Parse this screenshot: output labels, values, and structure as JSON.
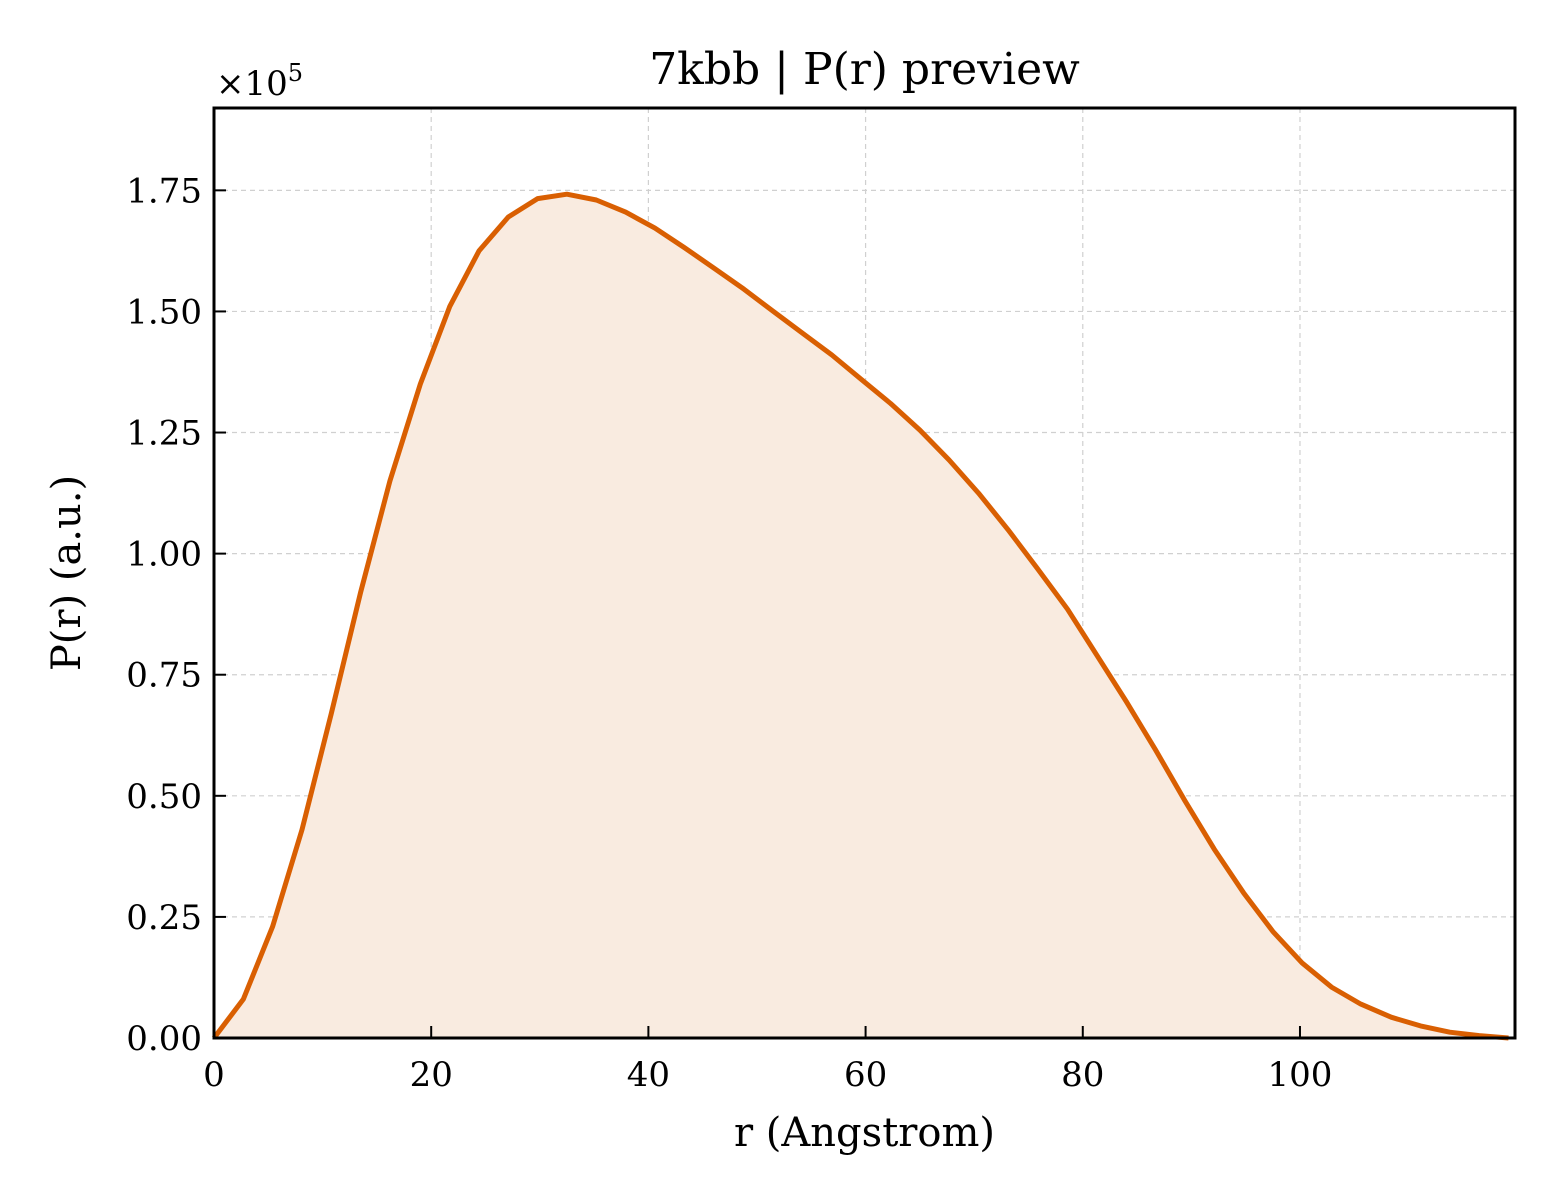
{
  "chart_data": {
    "type": "area",
    "title": "7kbb | P(r) preview",
    "xlabel": "r (Angstrom)",
    "ylabel": "P(r) (a.u.)",
    "y_offset_text": "×10",
    "y_offset_exponent": "5",
    "xlim": [
      0,
      119.8
    ],
    "ylim": [
      0,
      1.92
    ],
    "y_scale_factor": 100000,
    "xticks": [
      0,
      20,
      40,
      60,
      80,
      100
    ],
    "xtick_labels": [
      "0",
      "20",
      "40",
      "60",
      "80",
      "100"
    ],
    "yticks": [
      0,
      0.25,
      0.5,
      0.75,
      1.0,
      1.25,
      1.5,
      1.75
    ],
    "ytick_labels": [
      "0.00",
      "0.25",
      "0.50",
      "0.75",
      "1.00",
      "1.25",
      "1.50",
      "1.75"
    ],
    "grid": true,
    "series": [
      {
        "line_color": "#d95f02",
        "fill_color": "#f9ebe0",
        "x": [
          0,
          2.7,
          5.4,
          8.1,
          10.8,
          13.5,
          16.2,
          19.0,
          21.7,
          24.4,
          27.1,
          29.8,
          32.5,
          35.2,
          37.9,
          40.6,
          43.3,
          46.0,
          48.8,
          51.5,
          54.2,
          56.9,
          59.6,
          62.3,
          65.0,
          67.7,
          70.4,
          73.1,
          75.8,
          78.6,
          81.3,
          84.0,
          86.7,
          89.4,
          92.1,
          94.8,
          97.5,
          100.2,
          102.9,
          105.6,
          108.4,
          111.1,
          113.8,
          116.5,
          119.2
        ],
        "values": [
          0.0,
          0.08,
          0.23,
          0.43,
          0.67,
          0.92,
          1.15,
          1.35,
          1.51,
          1.625,
          1.695,
          1.733,
          1.742,
          1.73,
          1.705,
          1.672,
          1.632,
          1.59,
          1.546,
          1.5,
          1.455,
          1.41,
          1.36,
          1.31,
          1.255,
          1.193,
          1.125,
          1.05,
          0.97,
          0.885,
          0.79,
          0.695,
          0.595,
          0.49,
          0.39,
          0.3,
          0.22,
          0.155,
          0.105,
          0.07,
          0.043,
          0.025,
          0.012,
          0.005,
          0.0
        ]
      }
    ]
  }
}
